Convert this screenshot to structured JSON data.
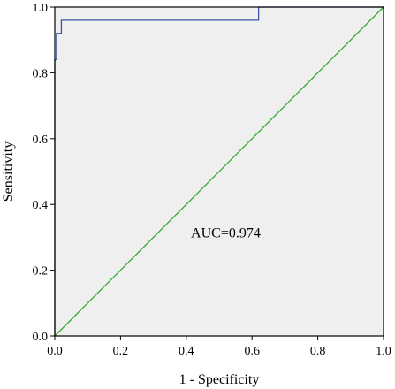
{
  "chart_data": {
    "type": "line",
    "title": "",
    "xlabel": "1 - Specificity",
    "ylabel": "Sensitivity",
    "xlim": [
      0.0,
      1.0
    ],
    "ylim": [
      0.0,
      1.0
    ],
    "x_ticks": [
      "0.0",
      "0.2",
      "0.4",
      "0.6",
      "0.8",
      "1.0"
    ],
    "y_ticks": [
      "0.0",
      "0.2",
      "0.4",
      "0.6",
      "0.8",
      "1.0"
    ],
    "grid": false,
    "legend": "none",
    "plot_background": "#efefef",
    "series": [
      {
        "color": "#3a57a0",
        "step": true,
        "x": [
          0.0,
          0.0,
          0.005,
          0.005,
          0.02,
          0.02,
          0.62,
          0.62,
          1.0
        ],
        "y": [
          0.0,
          0.84,
          0.84,
          0.92,
          0.92,
          0.96,
          0.96,
          1.0,
          1.0
        ]
      },
      {
        "color": "#2eaa2e",
        "x": [
          0.0,
          1.0
        ],
        "y": [
          0.0,
          1.0
        ]
      }
    ],
    "annotations": [
      {
        "text": "AUC=0.974",
        "x": 0.52,
        "y": 0.3
      }
    ]
  }
}
